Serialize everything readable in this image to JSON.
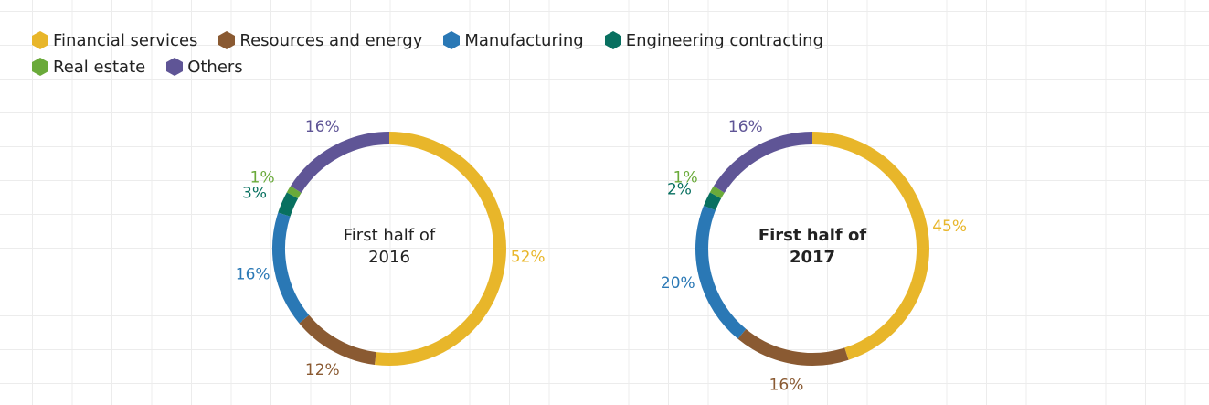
{
  "chart_data": [
    {
      "type": "pie",
      "donut": true,
      "title": "First half of 2016",
      "title_bold": false,
      "categories": [
        "Financial services",
        "Resources and energy",
        "Manufacturing",
        "Engineering contracting",
        "Real estate",
        "Others"
      ],
      "values": [
        52,
        12,
        16,
        3,
        1,
        16
      ],
      "value_labels": [
        "52%",
        "12%",
        "16%",
        "3%",
        "1%",
        "16%"
      ],
      "colors": [
        "#e8b62a",
        "#8a5a32",
        "#2a78b5",
        "#087060",
        "#6aaa3a",
        "#5f5596"
      ]
    },
    {
      "type": "pie",
      "donut": true,
      "title": "First half of 2017",
      "title_bold": true,
      "categories": [
        "Financial services",
        "Resources and energy",
        "Manufacturing",
        "Engineering contracting",
        "Real estate",
        "Others"
      ],
      "values": [
        45,
        16,
        20,
        2,
        1,
        16
      ],
      "value_labels": [
        "45%",
        "16%",
        "20%",
        "2%",
        "1%",
        "16%"
      ],
      "colors": [
        "#e8b62a",
        "#8a5a32",
        "#2a78b5",
        "#087060",
        "#6aaa3a",
        "#5f5596"
      ]
    }
  ]
}
